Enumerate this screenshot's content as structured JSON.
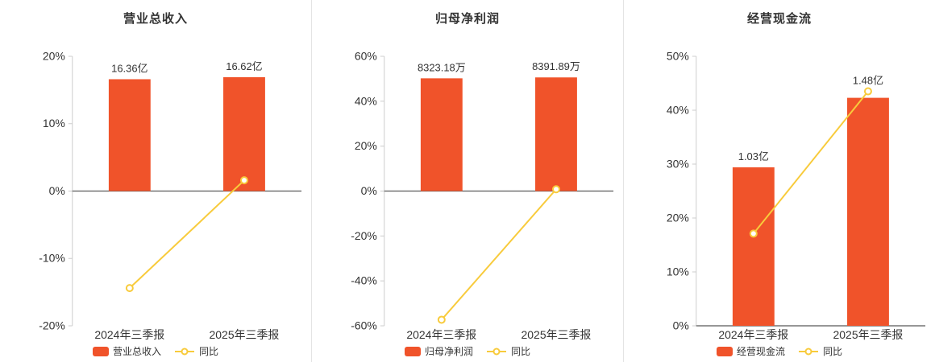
{
  "colors": {
    "bar": "#f0532a",
    "line": "#f8cb3c",
    "axis": "#cccccc",
    "zero_line": "#595959",
    "text": "#333333",
    "divider": "#e4e4e4",
    "background": "#ffffff"
  },
  "chart_data": [
    {
      "type": "bar",
      "title": "营业总收入",
      "categories": [
        "2024年三季报",
        "2025年三季报"
      ],
      "bar_series": {
        "name": "营业总收入",
        "value_labels": [
          "16.36亿",
          "16.62亿"
        ],
        "display_heights_pct": [
          16.6,
          16.9
        ]
      },
      "line_series": {
        "name": "同比",
        "values_pct": [
          -14.4,
          1.6
        ]
      },
      "ylim": [
        -20,
        20
      ],
      "yticks": [
        20,
        10,
        0,
        -10,
        -20
      ],
      "ytick_labels": [
        "20%",
        "10%",
        "0%",
        "-10%",
        "-20%"
      ],
      "legend_position": "bottom"
    },
    {
      "type": "bar",
      "title": "归母净利润",
      "categories": [
        "2024年三季报",
        "2025年三季报"
      ],
      "bar_series": {
        "name": "归母净利润",
        "value_labels": [
          "8323.18万",
          "8391.89万"
        ],
        "display_heights_pct": [
          50.2,
          50.6
        ]
      },
      "line_series": {
        "name": "同比",
        "values_pct": [
          -57.3,
          0.8
        ]
      },
      "ylim": [
        -60,
        60
      ],
      "yticks": [
        60,
        40,
        20,
        0,
        -20,
        -40,
        -60
      ],
      "ytick_labels": [
        "60%",
        "40%",
        "20%",
        "0%",
        "-20%",
        "-40%",
        "-60%"
      ],
      "legend_position": "bottom"
    },
    {
      "type": "bar",
      "title": "经营现金流",
      "categories": [
        "2024年三季报",
        "2025年三季报"
      ],
      "bar_series": {
        "name": "经营现金流",
        "value_labels": [
          "1.03亿",
          "1.48亿"
        ],
        "display_heights_pct": [
          29.4,
          42.3
        ]
      },
      "line_series": {
        "name": "同比",
        "values_pct": [
          17.1,
          43.5
        ]
      },
      "ylim": [
        0,
        50
      ],
      "yticks": [
        50,
        40,
        30,
        20,
        10,
        0
      ],
      "ytick_labels": [
        "50%",
        "40%",
        "30%",
        "20%",
        "10%",
        "0%"
      ],
      "legend_position": "bottom"
    }
  ]
}
